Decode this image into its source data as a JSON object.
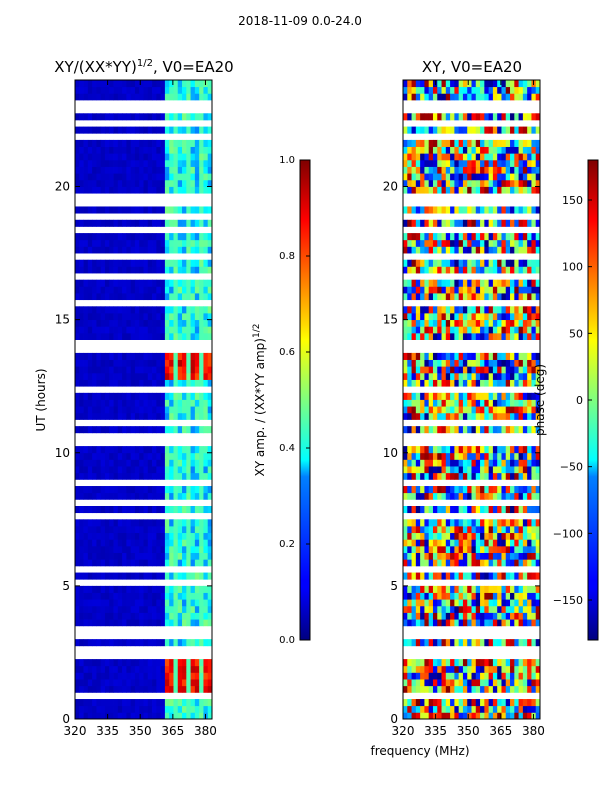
{
  "figure": {
    "suptitle": "2018-11-09 0.0-24.0",
    "xlabel": "frequency (MHz)"
  },
  "chart_data": [
    {
      "type": "heatmap",
      "title": "XY/(XX*YY)",
      "title_exponent": "1/2",
      "title_suffix": ", V0=EA20",
      "xlabel": "",
      "ylabel": "UT (hours)",
      "xlim": [
        320,
        383
      ],
      "ylim": [
        0,
        24
      ],
      "xticks": [
        320,
        335,
        350,
        365,
        380
      ],
      "yticks": [
        0,
        5,
        10,
        15,
        20
      ],
      "colorbar": {
        "label": "XY amp. / (XX*YY amp)",
        "label_exponent": "1/2",
        "range": [
          0.0,
          1.0
        ],
        "ticks": [
          "0.0",
          "0.2",
          "0.4",
          "0.6",
          "0.8",
          "1.0"
        ],
        "colormap": "jet"
      },
      "description_values": {
        "background_level": 0.05,
        "band_start_mhz": 362,
        "band_level": 0.35,
        "hot_spots_ut": [
          1.2,
          1.8,
          13.0,
          13.7
        ]
      }
    },
    {
      "type": "heatmap",
      "title": "XY, V0=EA20",
      "xlabel": "",
      "ylabel": "",
      "xlim": [
        320,
        383
      ],
      "ylim": [
        0,
        24
      ],
      "xticks": [
        320,
        335,
        350,
        365,
        380
      ],
      "yticks": [
        0,
        5,
        10,
        15,
        20
      ],
      "colorbar": {
        "label": "phase (deg)",
        "range": [
          -180,
          180
        ],
        "ticks": [
          "150",
          "100",
          "50",
          "0",
          "−50",
          "−100",
          "−150"
        ],
        "tick_values": [
          150,
          100,
          50,
          0,
          -50,
          -100,
          -150
        ],
        "colormap": "jet"
      }
    }
  ],
  "flagged_ut_hours": [
    0.9,
    1.5,
    2.3,
    2.6,
    3.2,
    3.4,
    4.0,
    5.0,
    5.2,
    5.7,
    7.5,
    7.7,
    8.1,
    8.5,
    8.9,
    9.5,
    10.4,
    10.6,
    11.2,
    12.4,
    13.5,
    13.9,
    14.2,
    15.0,
    15.6,
    16.0,
    16.6,
    17.3,
    18.0,
    18.3,
    18.9,
    19.3,
    19.7,
    20.5,
    21.0,
    21.9,
    22.3,
    22.9,
    23.2,
    23.5
  ]
}
